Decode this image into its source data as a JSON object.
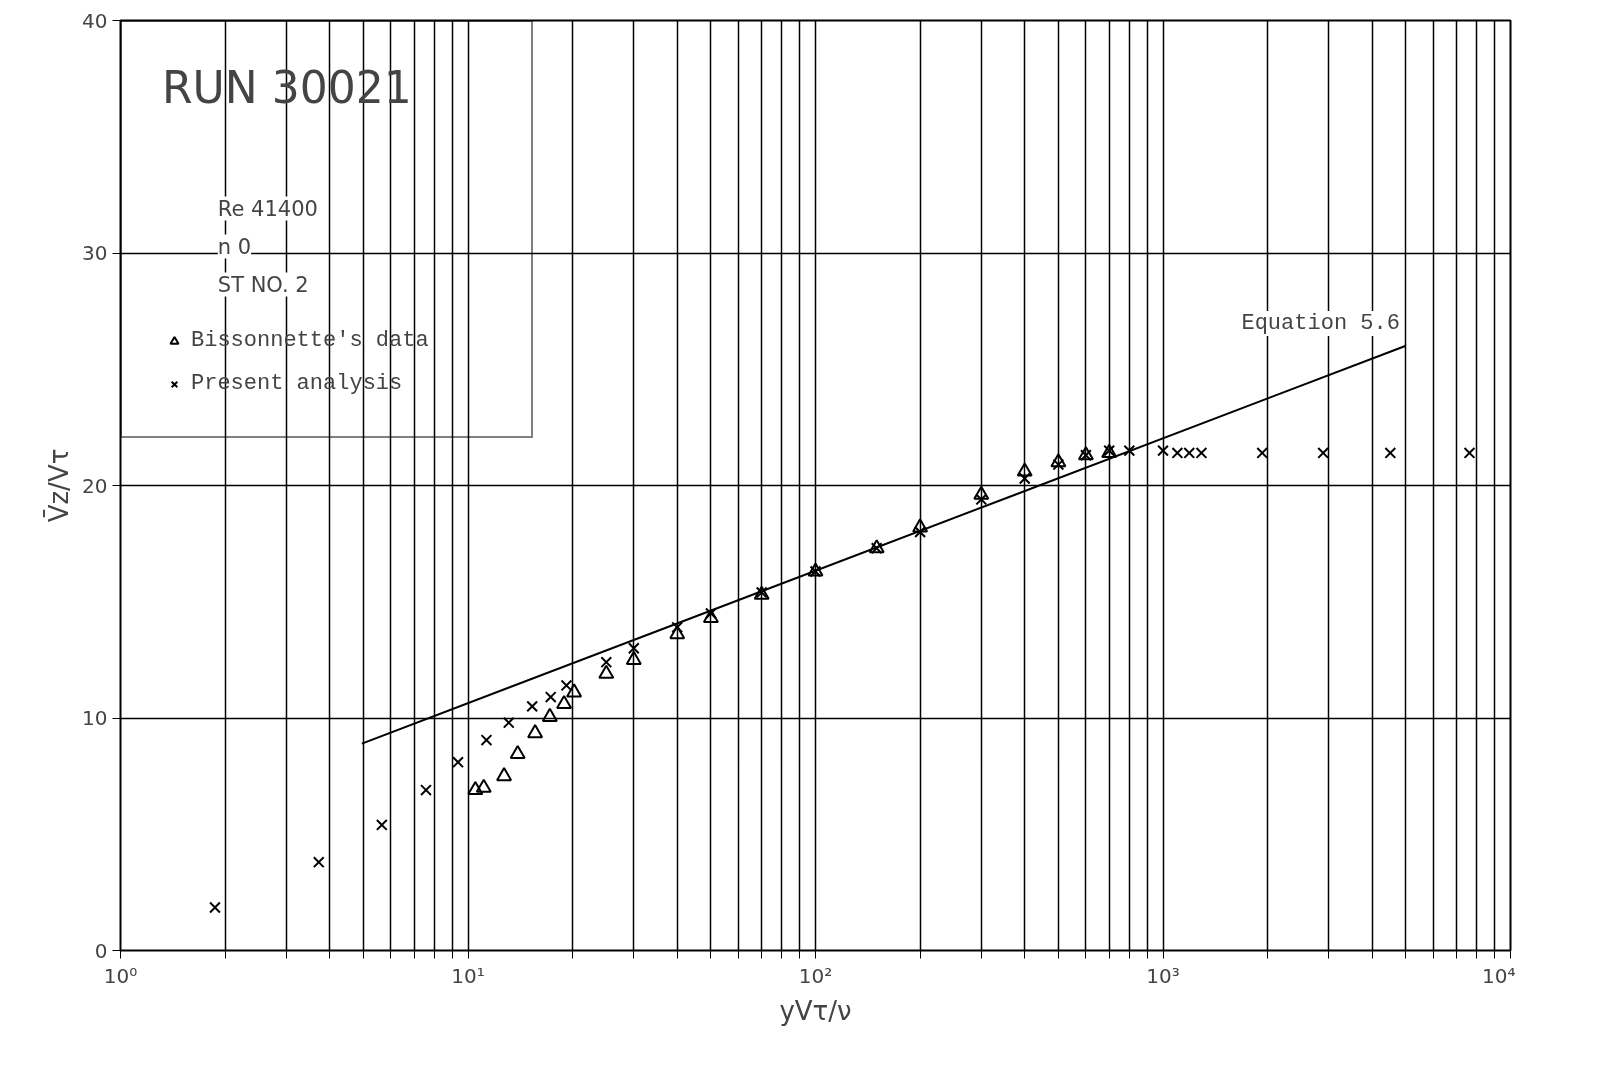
{
  "chart_data": {
    "type": "scatter",
    "title": "RUN 30021",
    "xlabel": "yVτ/ν",
    "ylabel": "V̄z/Vτ",
    "log": "x",
    "xlim": [
      1,
      10000
    ],
    "ylim": [
      0,
      40
    ],
    "xticks": [
      {
        "value": 1,
        "label": "10⁰"
      },
      {
        "value": 2,
        "label": null
      },
      {
        "value": 3,
        "label": null
      },
      {
        "value": 4,
        "label": null
      },
      {
        "value": 5,
        "label": null
      },
      {
        "value": 6,
        "label": null
      },
      {
        "value": 7,
        "label": null
      },
      {
        "value": 8,
        "label": null
      },
      {
        "value": 9,
        "label": null
      },
      {
        "value": 10,
        "label": "10¹"
      },
      {
        "value": 20,
        "label": null
      },
      {
        "value": 30,
        "label": null
      },
      {
        "value": 40,
        "label": null
      },
      {
        "value": 50,
        "label": null
      },
      {
        "value": 60,
        "label": null
      },
      {
        "value": 70,
        "label": null
      },
      {
        "value": 80,
        "label": null
      },
      {
        "value": 90,
        "label": null
      },
      {
        "value": 100,
        "label": "10²"
      },
      {
        "value": 200,
        "label": null
      },
      {
        "value": 300,
        "label": null
      },
      {
        "value": 400,
        "label": null
      },
      {
        "value": 500,
        "label": null
      },
      {
        "value": 600,
        "label": null
      },
      {
        "value": 700,
        "label": null
      },
      {
        "value": 800,
        "label": null
      },
      {
        "value": 900,
        "label": null
      },
      {
        "value": 1000,
        "label": "10³"
      },
      {
        "value": 2000,
        "label": null
      },
      {
        "value": 3000,
        "label": null
      },
      {
        "value": 4000,
        "label": null
      },
      {
        "value": 5000,
        "label": null
      },
      {
        "value": 6000,
        "label": null
      },
      {
        "value": 7000,
        "label": null
      },
      {
        "value": 8000,
        "label": null
      },
      {
        "value": 9000,
        "label": null
      },
      {
        "value": 10000,
        "label": "10⁴"
      }
    ],
    "yticks": [
      0,
      10,
      20,
      30,
      40
    ],
    "grid": true,
    "legend": "top left",
    "annotations": [
      "Re 41400",
      "n 0",
      "ST NO. 2",
      {
        "text": "Equation 5.6",
        "x": 5000,
        "y": 26
      }
    ],
    "series": [
      {
        "name": "Bissonnette's data",
        "marker": "triangle",
        "color": "#000000",
        "x": [
          10.5,
          11.1,
          12.7,
          13.9,
          15.6,
          17.2,
          18.9,
          20.2,
          25,
          30,
          40,
          50,
          70,
          100,
          150,
          200,
          300,
          400,
          500,
          600,
          700
        ],
        "values": [
          6.9,
          7.0,
          7.5,
          8.45,
          9.35,
          10.05,
          10.6,
          11.1,
          11.9,
          12.5,
          13.6,
          14.3,
          15.3,
          16.3,
          17.3,
          18.2,
          19.6,
          20.6,
          21.0,
          21.3,
          21.4
        ]
      },
      {
        "name": "Present analysis",
        "marker": "cross",
        "color": "#000000",
        "x": [
          1.87,
          3.72,
          5.65,
          7.57,
          9.36,
          11.3,
          13.1,
          15.3,
          17.3,
          19.2,
          25,
          30,
          40,
          50,
          70,
          100,
          150,
          200,
          300,
          400,
          500,
          600,
          700,
          800,
          1000,
          1100,
          1190,
          1290,
          1930,
          2890,
          4510,
          7620
        ],
        "values": [
          1.85,
          3.8,
          5.4,
          6.9,
          8.1,
          9.05,
          9.8,
          10.5,
          10.9,
          11.4,
          12.4,
          13.0,
          13.9,
          14.5,
          15.4,
          16.3,
          17.3,
          18.0,
          19.4,
          20.3,
          20.9,
          21.3,
          21.5,
          21.5,
          21.5,
          21.4,
          21.4,
          21.4,
          21.4,
          21.4,
          21.4,
          21.4
        ]
      },
      {
        "type": "line",
        "line_style": "solid",
        "color": "#000000",
        "x": [
          4.95,
          4980
        ],
        "values": [
          8.9,
          26.0
        ]
      }
    ]
  }
}
